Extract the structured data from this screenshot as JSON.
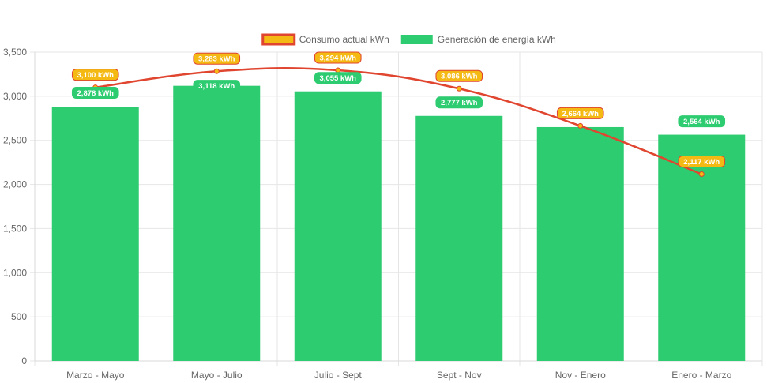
{
  "chart_data": {
    "type": "bar",
    "categories": [
      "Marzo - Mayo",
      "Mayo - Julio",
      "Julio - Sept",
      "Sept - Nov",
      "Nov - Enero",
      "Enero - Marzo"
    ],
    "series": [
      {
        "name": "Consumo actual kWh",
        "kind": "line",
        "values": [
          3100,
          3283,
          3294,
          3086,
          2664,
          2117
        ],
        "labels": [
          "3,100 kWh",
          "3,283 kWh",
          "3,294 kWh",
          "3,086 kWh",
          "2,664 kWh",
          "2,117 kWh"
        ],
        "line_color": "#e0452f",
        "point_color": "#f5b914",
        "label_bg": "#f5b914",
        "label_border": "#e0452f"
      },
      {
        "name": "Generación de energía kWh",
        "kind": "bar",
        "values": [
          2878,
          3118,
          3055,
          2777,
          2650,
          2564
        ],
        "labels": [
          "2,878 kWh",
          "3,118 kWh",
          "3,055 kWh",
          "2,777 kWh",
          "",
          "2,564 kWh"
        ],
        "bar_color": "#2ecc71",
        "label_bg": "#2ecc71"
      }
    ],
    "yticks": [
      0,
      500,
      1000,
      1500,
      2000,
      2500,
      3000,
      3500
    ],
    "ytick_labels": [
      "0",
      "500",
      "1,000",
      "1,500",
      "2,000",
      "2,500",
      "3,000",
      "3,500"
    ],
    "ylim": [
      0,
      3500
    ],
    "title": "",
    "xlabel": "",
    "ylabel": "",
    "grid": true,
    "legend_position": "top-center"
  },
  "colors": {
    "grid": "#e6e6e6",
    "axis_text": "#666666"
  }
}
